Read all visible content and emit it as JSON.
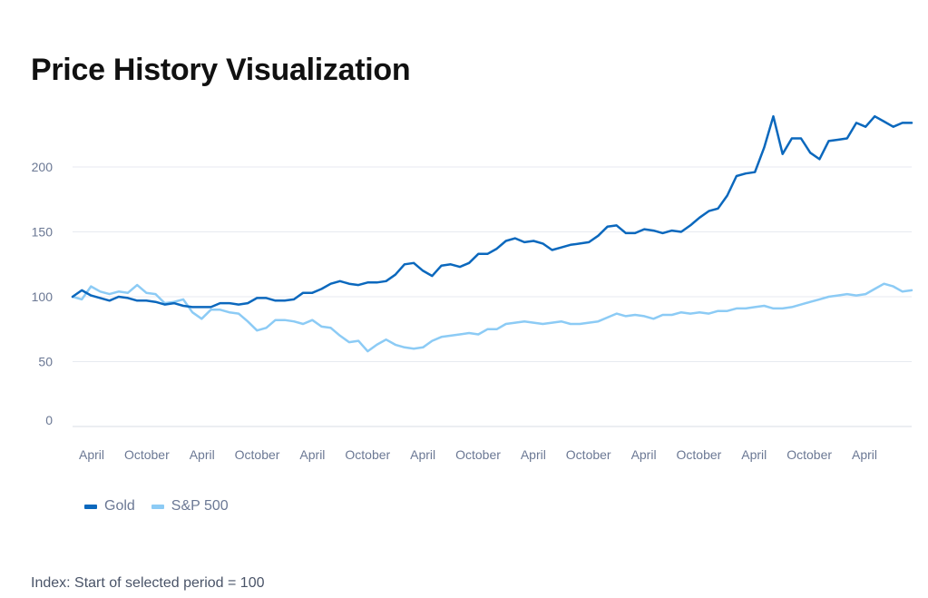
{
  "chart_data": {
    "type": "line",
    "title": "Price History Visualization",
    "xlabel": "",
    "ylabel": "",
    "ylim": [
      0,
      250
    ],
    "yticks": [
      0,
      50,
      100,
      150,
      200
    ],
    "xtick_labels": [
      "April",
      "October",
      "April",
      "October",
      "April",
      "October",
      "April",
      "October",
      "April",
      "October",
      "April",
      "October",
      "April",
      "October",
      "April"
    ],
    "grid": "horizontal",
    "legend_position": "bottom-left",
    "series": [
      {
        "name": "Gold",
        "color": "#0b68bd",
        "values": [
          100,
          105,
          101,
          99,
          97,
          100,
          99,
          97,
          97,
          96,
          94,
          95,
          93,
          92,
          92,
          92,
          95,
          95,
          94,
          95,
          99,
          99,
          97,
          97,
          98,
          103,
          103,
          106,
          110,
          112,
          110,
          109,
          111,
          111,
          112,
          117,
          125,
          126,
          120,
          116,
          124,
          125,
          123,
          126,
          133,
          133,
          137,
          143,
          145,
          142,
          143,
          141,
          136,
          138,
          140,
          141,
          142,
          147,
          154,
          155,
          149,
          149,
          152,
          151,
          149,
          151,
          150,
          155,
          161,
          166,
          168,
          178,
          193,
          195,
          196,
          215,
          239,
          210,
          222,
          222,
          211,
          206,
          220,
          221,
          222,
          234,
          231,
          239,
          235,
          231,
          234,
          234
        ]
      },
      {
        "name": "S&P 500",
        "color": "#8ccbf5",
        "values": [
          100,
          98,
          108,
          104,
          102,
          104,
          103,
          109,
          103,
          102,
          95,
          96,
          98,
          88,
          83,
          90,
          90,
          88,
          87,
          81,
          74,
          76,
          82,
          82,
          81,
          79,
          82,
          77,
          76,
          70,
          65,
          66,
          58,
          63,
          67,
          63,
          61,
          60,
          61,
          66,
          69,
          70,
          71,
          72,
          71,
          75,
          75,
          79,
          80,
          81,
          80,
          79,
          80,
          81,
          79,
          79,
          80,
          81,
          84,
          87,
          85,
          86,
          85,
          83,
          86,
          86,
          88,
          87,
          88,
          87,
          89,
          89,
          91,
          91,
          92,
          93,
          91,
          91,
          92,
          94,
          96,
          98,
          100,
          101,
          102,
          101,
          102,
          106,
          110,
          108,
          104,
          105
        ]
      }
    ]
  },
  "legend": {
    "gold_label": "Gold",
    "sp_label": "S&P 500"
  },
  "footnote": "Index: Start of selected period = 100"
}
